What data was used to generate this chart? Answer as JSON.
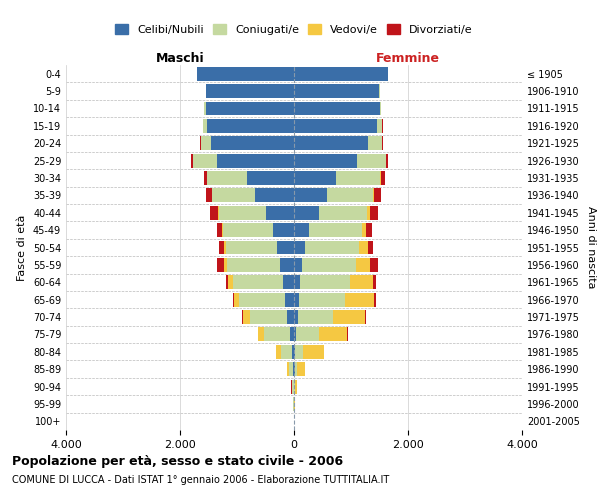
{
  "age_groups": [
    "0-4",
    "5-9",
    "10-14",
    "15-19",
    "20-24",
    "25-29",
    "30-34",
    "35-39",
    "40-44",
    "45-49",
    "50-54",
    "55-59",
    "60-64",
    "65-69",
    "70-74",
    "75-79",
    "80-84",
    "85-89",
    "90-94",
    "95-99",
    "100+"
  ],
  "birth_years": [
    "2001-2005",
    "1996-2000",
    "1991-1995",
    "1986-1990",
    "1981-1985",
    "1976-1980",
    "1971-1975",
    "1966-1970",
    "1961-1965",
    "1956-1960",
    "1951-1955",
    "1946-1950",
    "1941-1945",
    "1936-1940",
    "1931-1935",
    "1926-1930",
    "1921-1925",
    "1916-1920",
    "1911-1915",
    "1906-1910",
    "≤ 1905"
  ],
  "males": {
    "celibi": [
      1700,
      1540,
      1550,
      1520,
      1450,
      1350,
      820,
      680,
      500,
      370,
      290,
      240,
      190,
      160,
      120,
      70,
      35,
      18,
      8,
      3,
      1
    ],
    "coniugati": [
      5,
      10,
      25,
      75,
      180,
      420,
      700,
      750,
      820,
      870,
      900,
      930,
      880,
      800,
      660,
      460,
      200,
      70,
      25,
      7,
      2
    ],
    "vedovi": [
      0,
      0,
      1,
      2,
      3,
      5,
      10,
      15,
      20,
      30,
      40,
      55,
      80,
      90,
      120,
      100,
      80,
      30,
      10,
      3,
      1
    ],
    "divorziati": [
      1,
      2,
      4,
      8,
      15,
      30,
      55,
      100,
      130,
      80,
      90,
      120,
      40,
      20,
      15,
      10,
      5,
      2,
      1,
      0,
      0
    ]
  },
  "females": {
    "nubili": [
      1650,
      1490,
      1500,
      1450,
      1300,
      1100,
      730,
      580,
      430,
      270,
      190,
      140,
      110,
      90,
      65,
      40,
      20,
      10,
      5,
      2,
      1
    ],
    "coniugate": [
      5,
      12,
      30,
      90,
      240,
      510,
      780,
      800,
      850,
      920,
      950,
      940,
      880,
      800,
      620,
      400,
      140,
      45,
      15,
      4,
      1
    ],
    "vedove": [
      0,
      1,
      1,
      3,
      5,
      10,
      20,
      30,
      50,
      80,
      150,
      250,
      400,
      520,
      560,
      490,
      360,
      140,
      40,
      8,
      2
    ],
    "divorziate": [
      1,
      2,
      4,
      10,
      18,
      35,
      65,
      110,
      140,
      90,
      100,
      140,
      50,
      20,
      15,
      10,
      5,
      2,
      1,
      0,
      0
    ]
  },
  "colors": {
    "celibi": "#3a6ea8",
    "coniugati": "#c5d9a0",
    "vedovi": "#f5c842",
    "divorziati": "#c0141a"
  },
  "xlim": 4000,
  "title": "Popolazione per età, sesso e stato civile - 2006",
  "subtitle": "COMUNE DI LUCCA - Dati ISTAT 1° gennaio 2006 - Elaborazione TUTTITALIA.IT",
  "xlabel_left": "Maschi",
  "xlabel_right": "Femmine",
  "ylabel_left": "Fasce di età",
  "ylabel_right": "Anni di nascita",
  "legend_labels": [
    "Celibi/Nubili",
    "Coniugati/e",
    "Vedovi/e",
    "Divorziati/e"
  ]
}
